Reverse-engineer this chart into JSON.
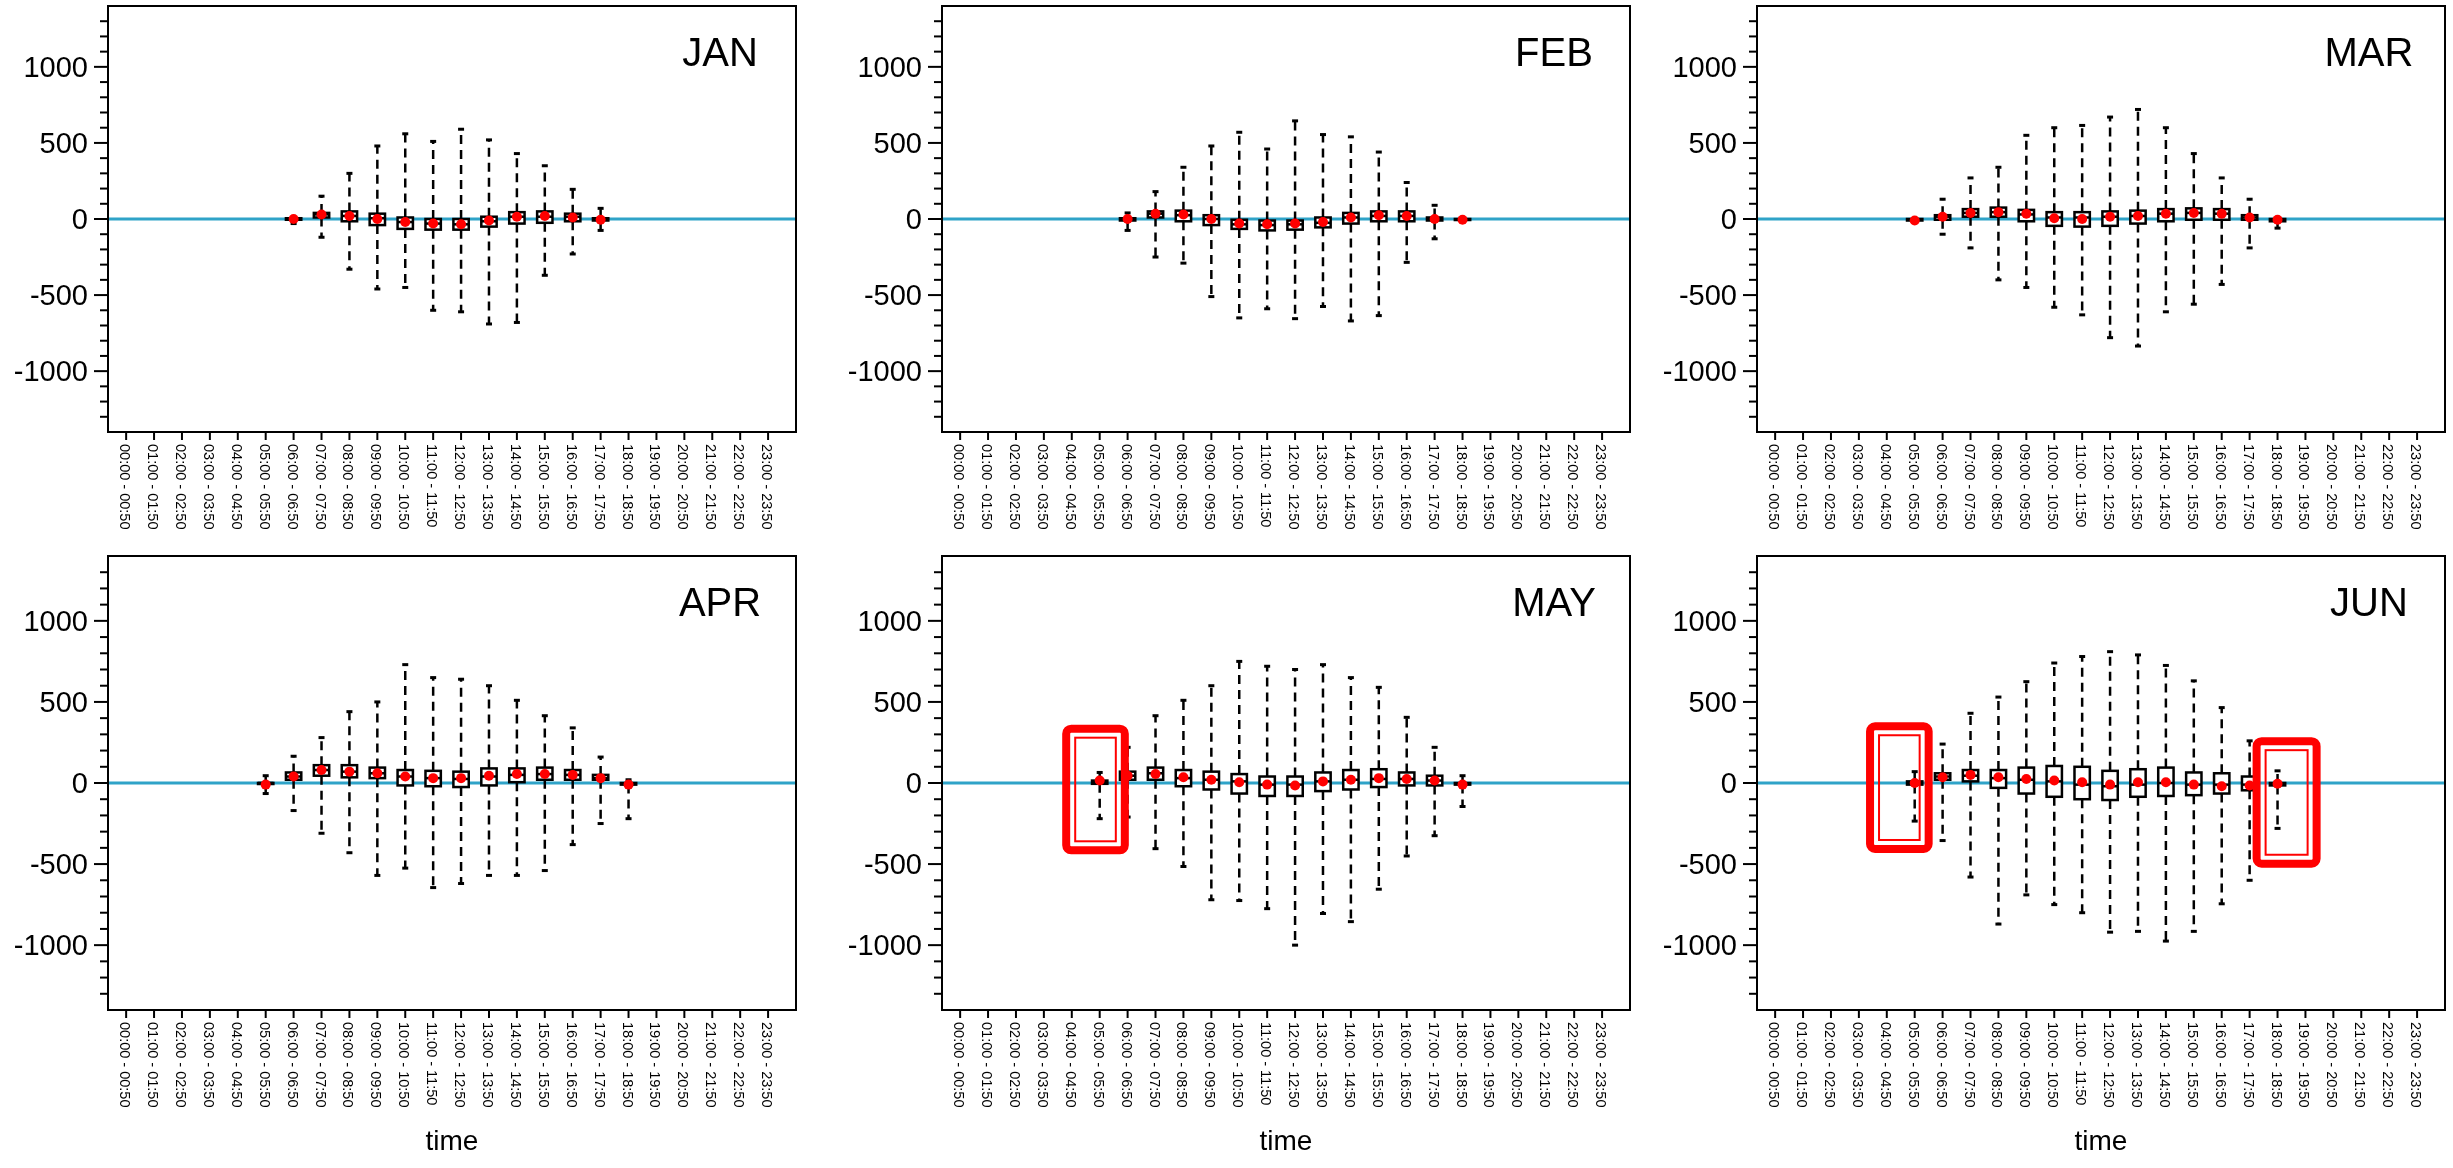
{
  "chart_data": [
    {
      "type": "box",
      "title": "JAN",
      "categories": [
        "00:00 - 00:50",
        "01:00 - 01:50",
        "02:00 - 02:50",
        "03:00 - 03:50",
        "04:00 - 04:50",
        "05:00 - 05:50",
        "06:00 - 06:50",
        "07:00 - 07:50",
        "08:00 - 08:50",
        "09:00 - 09:50",
        "10:00 - 10:50",
        "11:00 - 11:50",
        "12:00 - 12:50",
        "13:00 - 13:50",
        "14:00 - 14:50",
        "15:00 - 15:50",
        "16:00 - 16:50",
        "17:00 - 17:50",
        "18:00 - 18:50",
        "19:00 - 19:50",
        "20:00 - 20:50",
        "21:00 - 21:50",
        "22:00 - 22:50",
        "23:00 - 23:50"
      ],
      "ylim": [
        -1400,
        1400
      ],
      "yticks": [
        {
          "value": -1300,
          "label": null
        },
        {
          "value": -1200,
          "label": null
        },
        {
          "value": -1100,
          "label": null
        },
        -1000,
        {
          "value": -900,
          "label": null
        },
        {
          "value": -800,
          "label": null
        },
        {
          "value": -700,
          "label": null
        },
        {
          "value": -600,
          "label": null
        },
        -500,
        {
          "value": -400,
          "label": null
        },
        {
          "value": -300,
          "label": null
        },
        {
          "value": -200,
          "label": null
        },
        {
          "value": -100,
          "label": null
        },
        0,
        {
          "value": 100,
          "label": null
        },
        {
          "value": 200,
          "label": null
        },
        {
          "value": 300,
          "label": null
        },
        {
          "value": 400,
          "label": null
        },
        500,
        {
          "value": 600,
          "label": null
        },
        {
          "value": 700,
          "label": null
        },
        {
          "value": 800,
          "label": null
        },
        {
          "value": 900,
          "label": null
        },
        1000,
        {
          "value": 1100,
          "label": null
        },
        {
          "value": 1200,
          "label": null
        },
        {
          "value": 1300,
          "label": null
        }
      ],
      "ref_lines": [
        {
          "axis": "y",
          "value": 0,
          "color": "#2fa3c8"
        }
      ],
      "boxes": [
        null,
        null,
        null,
        null,
        null,
        null,
        {
          "low": -30,
          "q1": -5,
          "median": 0,
          "q3": 5,
          "high": 10,
          "mean": 0
        },
        {
          "low": -120,
          "q1": 10,
          "median": 30,
          "q3": 40,
          "high": 150,
          "mean": 30
        },
        {
          "low": -330,
          "q1": -15,
          "median": 20,
          "q3": 50,
          "high": 300,
          "mean": 20
        },
        {
          "low": -460,
          "q1": -40,
          "median": 5,
          "q3": 35,
          "high": 480,
          "mean": 0
        },
        {
          "low": -450,
          "q1": -65,
          "median": -20,
          "q3": 10,
          "high": 560,
          "mean": -20
        },
        {
          "low": -600,
          "q1": -70,
          "median": -30,
          "q3": 0,
          "high": 510,
          "mean": -30
        },
        {
          "low": -610,
          "q1": -70,
          "median": -35,
          "q3": 0,
          "high": 590,
          "mean": -35
        },
        {
          "low": -690,
          "q1": -50,
          "median": -15,
          "q3": 15,
          "high": 520,
          "mean": -10
        },
        {
          "low": -680,
          "q1": -30,
          "median": 15,
          "q3": 45,
          "high": 430,
          "mean": 15
        },
        {
          "low": -370,
          "q1": -25,
          "median": 15,
          "q3": 50,
          "high": 350,
          "mean": 20
        },
        {
          "low": -230,
          "q1": -15,
          "median": 15,
          "q3": 35,
          "high": 195,
          "mean": 10
        },
        {
          "low": -75,
          "q1": -10,
          "median": 0,
          "q3": 5,
          "high": 70,
          "mean": -5
        },
        null,
        null,
        null,
        null,
        null,
        null
      ]
    },
    {
      "type": "box",
      "title": "FEB",
      "categories": [
        "00:00 - 00:50",
        "01:00 - 01:50",
        "02:00 - 02:50",
        "03:00 - 03:50",
        "04:00 - 04:50",
        "05:00 - 05:50",
        "06:00 - 06:50",
        "07:00 - 07:50",
        "08:00 - 08:50",
        "09:00 - 09:50",
        "10:00 - 10:50",
        "11:00 - 11:50",
        "12:00 - 12:50",
        "13:00 - 13:50",
        "14:00 - 14:50",
        "15:00 - 15:50",
        "16:00 - 16:50",
        "17:00 - 17:50",
        "18:00 - 18:50",
        "19:00 - 19:50",
        "20:00 - 20:50",
        "21:00 - 21:50",
        "22:00 - 22:50",
        "23:00 - 23:50"
      ],
      "ylim": [
        -1400,
        1400
      ],
      "yticks": [
        {
          "value": -1300,
          "label": null
        },
        {
          "value": -1200,
          "label": null
        },
        {
          "value": -1100,
          "label": null
        },
        -1000,
        {
          "value": -900,
          "label": null
        },
        {
          "value": -800,
          "label": null
        },
        {
          "value": -700,
          "label": null
        },
        {
          "value": -600,
          "label": null
        },
        -500,
        {
          "value": -400,
          "label": null
        },
        {
          "value": -300,
          "label": null
        },
        {
          "value": -200,
          "label": null
        },
        {
          "value": -100,
          "label": null
        },
        0,
        {
          "value": 100,
          "label": null
        },
        {
          "value": 200,
          "label": null
        },
        {
          "value": 300,
          "label": null
        },
        {
          "value": 400,
          "label": null
        },
        500,
        {
          "value": 600,
          "label": null
        },
        {
          "value": 700,
          "label": null
        },
        {
          "value": 800,
          "label": null
        },
        {
          "value": 900,
          "label": null
        },
        1000,
        {
          "value": 1100,
          "label": null
        },
        {
          "value": 1200,
          "label": null
        },
        {
          "value": 1300,
          "label": null
        }
      ],
      "ref_lines": [
        {
          "axis": "y",
          "value": 0,
          "color": "#2fa3c8"
        }
      ],
      "boxes": [
        null,
        null,
        null,
        null,
        null,
        null,
        {
          "low": -75,
          "q1": -10,
          "median": 0,
          "q3": 5,
          "high": 40,
          "mean": 0
        },
        {
          "low": -250,
          "q1": 10,
          "median": 35,
          "q3": 50,
          "high": 180,
          "mean": 35
        },
        {
          "low": -290,
          "q1": -15,
          "median": 25,
          "q3": 55,
          "high": 340,
          "mean": 30
        },
        {
          "low": -510,
          "q1": -40,
          "median": 0,
          "q3": 25,
          "high": 480,
          "mean": 0
        },
        {
          "low": -650,
          "q1": -65,
          "median": -35,
          "q3": -5,
          "high": 570,
          "mean": -30
        },
        {
          "low": -590,
          "q1": -75,
          "median": -40,
          "q3": -10,
          "high": 460,
          "mean": -35
        },
        {
          "low": -655,
          "q1": -70,
          "median": -35,
          "q3": -10,
          "high": 645,
          "mean": -30
        },
        {
          "low": -575,
          "q1": -55,
          "median": -25,
          "q3": 10,
          "high": 555,
          "mean": -20
        },
        {
          "low": -670,
          "q1": -30,
          "median": 10,
          "q3": 40,
          "high": 540,
          "mean": 10
        },
        {
          "low": -635,
          "q1": -15,
          "median": 20,
          "q3": 50,
          "high": 440,
          "mean": 25
        },
        {
          "low": -285,
          "q1": -15,
          "median": 20,
          "q3": 50,
          "high": 240,
          "mean": 20
        },
        {
          "low": -130,
          "q1": -10,
          "median": 0,
          "q3": 10,
          "high": 90,
          "mean": 0
        },
        {
          "low": -10,
          "q1": -5,
          "median": -5,
          "q3": 0,
          "high": 0,
          "mean": -5
        },
        null,
        null,
        null,
        null,
        null
      ]
    },
    {
      "type": "box",
      "title": "MAR",
      "categories": [
        "00:00 - 00:50",
        "01:00 - 01:50",
        "02:00 - 02:50",
        "03:00 - 03:50",
        "04:00 - 04:50",
        "05:00 - 05:50",
        "06:00 - 06:50",
        "07:00 - 07:50",
        "08:00 - 08:50",
        "09:00 - 09:50",
        "10:00 - 10:50",
        "11:00 - 11:50",
        "12:00 - 12:50",
        "13:00 - 13:50",
        "14:00 - 14:50",
        "15:00 - 15:50",
        "16:00 - 16:50",
        "17:00 - 17:50",
        "18:00 - 18:50",
        "19:00 - 19:50",
        "20:00 - 20:50",
        "21:00 - 21:50",
        "22:00 - 22:50",
        "23:00 - 23:50"
      ],
      "ylim": [
        -1400,
        1400
      ],
      "yticks": [
        {
          "value": -1300,
          "label": null
        },
        {
          "value": -1200,
          "label": null
        },
        {
          "value": -1100,
          "label": null
        },
        -1000,
        {
          "value": -900,
          "label": null
        },
        {
          "value": -800,
          "label": null
        },
        {
          "value": -700,
          "label": null
        },
        {
          "value": -600,
          "label": null
        },
        -500,
        {
          "value": -400,
          "label": null
        },
        {
          "value": -300,
          "label": null
        },
        {
          "value": -200,
          "label": null
        },
        {
          "value": -100,
          "label": null
        },
        0,
        {
          "value": 100,
          "label": null
        },
        {
          "value": 200,
          "label": null
        },
        {
          "value": 300,
          "label": null
        },
        {
          "value": 400,
          "label": null
        },
        500,
        {
          "value": 600,
          "label": null
        },
        {
          "value": 700,
          "label": null
        },
        {
          "value": 800,
          "label": null
        },
        {
          "value": 900,
          "label": null
        },
        1000,
        {
          "value": 1100,
          "label": null
        },
        {
          "value": 1200,
          "label": null
        },
        {
          "value": 1300,
          "label": null
        }
      ],
      "ref_lines": [
        {
          "axis": "y",
          "value": 0,
          "color": "#2fa3c8"
        }
      ],
      "boxes": [
        null,
        null,
        null,
        null,
        null,
        {
          "low": -15,
          "q1": -10,
          "median": -5,
          "q3": 0,
          "high": 0,
          "mean": -10
        },
        {
          "low": -100,
          "q1": -5,
          "median": 15,
          "q3": 25,
          "high": 130,
          "mean": 15
        },
        {
          "low": -190,
          "q1": 15,
          "median": 40,
          "q3": 65,
          "high": 270,
          "mean": 40
        },
        {
          "low": -400,
          "q1": 15,
          "median": 45,
          "q3": 75,
          "high": 340,
          "mean": 45
        },
        {
          "low": -450,
          "q1": -15,
          "median": 30,
          "q3": 60,
          "high": 550,
          "mean": 35
        },
        {
          "low": -580,
          "q1": -45,
          "median": 10,
          "q3": 45,
          "high": 600,
          "mean": 5
        },
        {
          "low": -630,
          "q1": -50,
          "median": 10,
          "q3": 45,
          "high": 615,
          "mean": 0
        },
        {
          "low": -780,
          "q1": -45,
          "median": 15,
          "q3": 50,
          "high": 670,
          "mean": 15
        },
        {
          "low": -835,
          "q1": -30,
          "median": 20,
          "q3": 55,
          "high": 720,
          "mean": 20
        },
        {
          "low": -610,
          "q1": -15,
          "median": 35,
          "q3": 65,
          "high": 600,
          "mean": 35
        },
        {
          "low": -560,
          "q1": -5,
          "median": 40,
          "q3": 70,
          "high": 430,
          "mean": 40
        },
        {
          "low": -430,
          "q1": -5,
          "median": 35,
          "q3": 65,
          "high": 270,
          "mean": 35
        },
        {
          "low": -190,
          "q1": -5,
          "median": 10,
          "q3": 25,
          "high": 130,
          "mean": 10
        },
        {
          "low": -60,
          "q1": -15,
          "median": -5,
          "q3": 0,
          "high": 0,
          "mean": -5
        },
        null,
        null,
        null,
        null,
        null
      ]
    },
    {
      "type": "box",
      "title": "APR",
      "xlabel": "time",
      "categories": [
        "00:00 - 00:50",
        "01:00 - 01:50",
        "02:00 - 02:50",
        "03:00 - 03:50",
        "04:00 - 04:50",
        "05:00 - 05:50",
        "06:00 - 06:50",
        "07:00 - 07:50",
        "08:00 - 08:50",
        "09:00 - 09:50",
        "10:00 - 10:50",
        "11:00 - 11:50",
        "12:00 - 12:50",
        "13:00 - 13:50",
        "14:00 - 14:50",
        "15:00 - 15:50",
        "16:00 - 16:50",
        "17:00 - 17:50",
        "18:00 - 18:50",
        "19:00 - 19:50",
        "20:00 - 20:50",
        "21:00 - 21:50",
        "22:00 - 22:50",
        "23:00 - 23:50"
      ],
      "ylim": [
        -1400,
        1400
      ],
      "yticks": [
        {
          "value": -1300,
          "label": null
        },
        {
          "value": -1200,
          "label": null
        },
        {
          "value": -1100,
          "label": null
        },
        -1000,
        {
          "value": -900,
          "label": null
        },
        {
          "value": -800,
          "label": null
        },
        {
          "value": -700,
          "label": null
        },
        {
          "value": -600,
          "label": null
        },
        -500,
        {
          "value": -400,
          "label": null
        },
        {
          "value": -300,
          "label": null
        },
        {
          "value": -200,
          "label": null
        },
        {
          "value": -100,
          "label": null
        },
        0,
        {
          "value": 100,
          "label": null
        },
        {
          "value": 200,
          "label": null
        },
        {
          "value": 300,
          "label": null
        },
        {
          "value": 400,
          "label": null
        },
        500,
        {
          "value": 600,
          "label": null
        },
        {
          "value": 700,
          "label": null
        },
        {
          "value": 800,
          "label": null
        },
        {
          "value": 900,
          "label": null
        },
        1000,
        {
          "value": 1100,
          "label": null
        },
        {
          "value": 1200,
          "label": null
        },
        {
          "value": 1300,
          "label": null
        }
      ],
      "ref_lines": [
        {
          "axis": "y",
          "value": 0,
          "color": "#2fa3c8"
        }
      ],
      "boxes": [
        null,
        null,
        null,
        null,
        null,
        {
          "low": -65,
          "q1": -5,
          "median": 0,
          "q3": 0,
          "high": 45,
          "mean": -10
        },
        {
          "low": -170,
          "q1": 20,
          "median": 40,
          "q3": 65,
          "high": 165,
          "mean": 40
        },
        {
          "low": -310,
          "q1": 45,
          "median": 80,
          "q3": 110,
          "high": 280,
          "mean": 80
        },
        {
          "low": -430,
          "q1": 35,
          "median": 70,
          "q3": 110,
          "high": 440,
          "mean": 70
        },
        {
          "low": -570,
          "q1": 30,
          "median": 60,
          "q3": 95,
          "high": 500,
          "mean": 60
        },
        {
          "low": -525,
          "q1": -15,
          "median": 40,
          "q3": 80,
          "high": 730,
          "mean": 40
        },
        {
          "low": -645,
          "q1": -20,
          "median": 30,
          "q3": 75,
          "high": 650,
          "mean": 30
        },
        {
          "low": -620,
          "q1": -25,
          "median": 25,
          "q3": 70,
          "high": 640,
          "mean": 30
        },
        {
          "low": -570,
          "q1": -15,
          "median": 40,
          "q3": 90,
          "high": 600,
          "mean": 45
        },
        {
          "low": -570,
          "q1": 5,
          "median": 50,
          "q3": 90,
          "high": 510,
          "mean": 55
        },
        {
          "low": -540,
          "q1": 20,
          "median": 55,
          "q3": 95,
          "high": 415,
          "mean": 55
        },
        {
          "low": -380,
          "q1": 20,
          "median": 50,
          "q3": 80,
          "high": 340,
          "mean": 50
        },
        {
          "low": -250,
          "q1": 20,
          "median": 30,
          "q3": 50,
          "high": 160,
          "mean": 30
        },
        {
          "low": -220,
          "q1": -10,
          "median": -5,
          "q3": 0,
          "high": 20,
          "mean": -10
        },
        null,
        null,
        null,
        null,
        null
      ]
    },
    {
      "type": "box",
      "title": "MAY",
      "xlabel": "time",
      "categories": [
        "00:00 - 00:50",
        "01:00 - 01:50",
        "02:00 - 02:50",
        "03:00 - 03:50",
        "04:00 - 04:50",
        "05:00 - 05:50",
        "06:00 - 06:50",
        "07:00 - 07:50",
        "08:00 - 08:50",
        "09:00 - 09:50",
        "10:00 - 10:50",
        "11:00 - 11:50",
        "12:00 - 12:50",
        "13:00 - 13:50",
        "14:00 - 14:50",
        "15:00 - 15:50",
        "16:00 - 16:50",
        "17:00 - 17:50",
        "18:00 - 18:50",
        "19:00 - 19:50",
        "20:00 - 20:50",
        "21:00 - 21:50",
        "22:00 - 22:50",
        "23:00 - 23:50"
      ],
      "ylim": [
        -1400,
        1400
      ],
      "yticks": [
        {
          "value": -1300,
          "label": null
        },
        {
          "value": -1200,
          "label": null
        },
        {
          "value": -1100,
          "label": null
        },
        -1000,
        {
          "value": -900,
          "label": null
        },
        {
          "value": -800,
          "label": null
        },
        {
          "value": -700,
          "label": null
        },
        {
          "value": -600,
          "label": null
        },
        -500,
        {
          "value": -400,
          "label": null
        },
        {
          "value": -300,
          "label": null
        },
        {
          "value": -200,
          "label": null
        },
        {
          "value": -100,
          "label": null
        },
        0,
        {
          "value": 100,
          "label": null
        },
        {
          "value": 200,
          "label": null
        },
        {
          "value": 300,
          "label": null
        },
        {
          "value": 400,
          "label": null
        },
        500,
        {
          "value": 600,
          "label": null
        },
        {
          "value": 700,
          "label": null
        },
        {
          "value": 800,
          "label": null
        },
        {
          "value": 900,
          "label": null
        },
        1000,
        {
          "value": 1100,
          "label": null
        },
        {
          "value": 1200,
          "label": null
        },
        {
          "value": 1300,
          "label": null
        }
      ],
      "ref_lines": [
        {
          "axis": "y",
          "value": 0,
          "color": "#2fa3c8"
        }
      ],
      "boxes": [
        null,
        null,
        null,
        null,
        null,
        {
          "low": -220,
          "q1": -5,
          "median": 5,
          "q3": 15,
          "high": 65,
          "mean": 15
        },
        {
          "low": -210,
          "q1": 20,
          "median": 45,
          "q3": 70,
          "high": 220,
          "mean": 45
        },
        {
          "low": -405,
          "q1": 20,
          "median": 60,
          "q3": 95,
          "high": 415,
          "mean": 55
        },
        {
          "low": -515,
          "q1": -20,
          "median": 30,
          "q3": 80,
          "high": 510,
          "mean": 35
        },
        {
          "low": -720,
          "q1": -40,
          "median": 20,
          "q3": 70,
          "high": 600,
          "mean": 20
        },
        {
          "low": -725,
          "q1": -65,
          "median": 10,
          "q3": 55,
          "high": 750,
          "mean": 5
        },
        {
          "low": -775,
          "q1": -80,
          "median": -10,
          "q3": 40,
          "high": 720,
          "mean": -10
        },
        {
          "low": -1000,
          "q1": -80,
          "median": -10,
          "q3": 40,
          "high": 700,
          "mean": -15
        },
        {
          "low": -805,
          "q1": -50,
          "median": 10,
          "q3": 65,
          "high": 730,
          "mean": 10
        },
        {
          "low": -855,
          "q1": -40,
          "median": 20,
          "q3": 80,
          "high": 650,
          "mean": 20
        },
        {
          "low": -655,
          "q1": -25,
          "median": 25,
          "q3": 85,
          "high": 590,
          "mean": 30
        },
        {
          "low": -450,
          "q1": -15,
          "median": 25,
          "q3": 65,
          "high": 405,
          "mean": 25
        },
        {
          "low": -325,
          "q1": -15,
          "median": 15,
          "q3": 45,
          "high": 220,
          "mean": 15
        },
        {
          "low": -145,
          "q1": -10,
          "median": -5,
          "q3": 0,
          "high": 45,
          "mean": -10
        },
        null,
        null,
        null,
        null,
        null
      ]
    },
    {
      "type": "box",
      "title": "JUN",
      "xlabel": "time",
      "categories": [
        "00:00 - 00:50",
        "01:00 - 01:50",
        "02:00 - 02:50",
        "03:00 - 03:50",
        "04:00 - 04:50",
        "05:00 - 05:50",
        "06:00 - 06:50",
        "07:00 - 07:50",
        "08:00 - 08:50",
        "09:00 - 09:50",
        "10:00 - 10:50",
        "11:00 - 11:50",
        "12:00 - 12:50",
        "13:00 - 13:50",
        "14:00 - 14:50",
        "15:00 - 15:50",
        "16:00 - 16:50",
        "17:00 - 17:50",
        "18:00 - 18:50",
        "19:00 - 19:50",
        "20:00 - 20:50",
        "21:00 - 21:50",
        "22:00 - 22:50",
        "23:00 - 23:50"
      ],
      "ylim": [
        -1400,
        1400
      ],
      "yticks": [
        {
          "value": -1300,
          "label": null
        },
        {
          "value": -1200,
          "label": null
        },
        {
          "value": -1100,
          "label": null
        },
        -1000,
        {
          "value": -900,
          "label": null
        },
        {
          "value": -800,
          "label": null
        },
        {
          "value": -700,
          "label": null
        },
        {
          "value": -600,
          "label": null
        },
        -500,
        {
          "value": -400,
          "label": null
        },
        {
          "value": -300,
          "label": null
        },
        {
          "value": -200,
          "label": null
        },
        {
          "value": -100,
          "label": null
        },
        0,
        {
          "value": 100,
          "label": null
        },
        {
          "value": 200,
          "label": null
        },
        {
          "value": 300,
          "label": null
        },
        {
          "value": 400,
          "label": null
        },
        500,
        {
          "value": 600,
          "label": null
        },
        {
          "value": 700,
          "label": null
        },
        {
          "value": 800,
          "label": null
        },
        {
          "value": 900,
          "label": null
        },
        1000,
        {
          "value": 1100,
          "label": null
        },
        {
          "value": 1200,
          "label": null
        },
        {
          "value": 1300,
          "label": null
        }
      ],
      "ref_lines": [
        {
          "axis": "y",
          "value": 0,
          "color": "#2fa3c8"
        }
      ],
      "boxes": [
        null,
        null,
        null,
        null,
        null,
        {
          "low": -235,
          "q1": -10,
          "median": 0,
          "q3": 10,
          "high": 70,
          "mean": 0
        },
        {
          "low": -355,
          "q1": 20,
          "median": 40,
          "q3": 60,
          "high": 240,
          "mean": 35
        },
        {
          "low": -580,
          "q1": 10,
          "median": 45,
          "q3": 80,
          "high": 430,
          "mean": 50
        },
        {
          "low": -870,
          "q1": -30,
          "median": 30,
          "q3": 80,
          "high": 530,
          "mean": 35
        },
        {
          "low": -690,
          "q1": -65,
          "median": 20,
          "q3": 95,
          "high": 625,
          "mean": 25
        },
        {
          "low": -750,
          "q1": -85,
          "median": 10,
          "q3": 105,
          "high": 740,
          "mean": 15
        },
        {
          "low": -800,
          "q1": -100,
          "median": -10,
          "q3": 100,
          "high": 780,
          "mean": 5
        },
        {
          "low": -920,
          "q1": -105,
          "median": -20,
          "q3": 75,
          "high": 810,
          "mean": -10
        },
        {
          "low": -915,
          "q1": -85,
          "median": -10,
          "q3": 85,
          "high": 790,
          "mean": 5
        },
        {
          "low": -975,
          "q1": -80,
          "median": 0,
          "q3": 95,
          "high": 725,
          "mean": 5
        },
        {
          "low": -915,
          "q1": -75,
          "median": -10,
          "q3": 65,
          "high": 630,
          "mean": -10
        },
        {
          "low": -745,
          "q1": -65,
          "median": -10,
          "q3": 60,
          "high": 465,
          "mean": -20
        },
        {
          "low": -600,
          "q1": -45,
          "median": -10,
          "q3": 40,
          "high": 260,
          "mean": -15
        },
        {
          "low": -280,
          "q1": -15,
          "median": -5,
          "q3": 0,
          "high": 75,
          "mean": -5
        },
        null,
        null,
        null,
        null,
        null
      ]
    }
  ]
}
